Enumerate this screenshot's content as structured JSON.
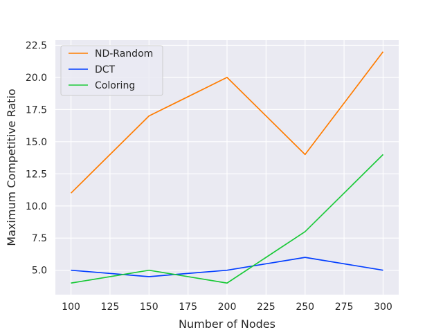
{
  "chart_data": {
    "type": "line",
    "title": "",
    "xlabel": "Number of Nodes",
    "ylabel": "Maximum Competitive Ratio",
    "x": [
      100,
      150,
      200,
      250,
      300
    ],
    "xlim": [
      90,
      310
    ],
    "ylim": [
      3.1,
      22.9
    ],
    "xticks": [
      100,
      125,
      150,
      175,
      200,
      225,
      250,
      275,
      300
    ],
    "xtick_labels": [
      "100",
      "125",
      "150",
      "175",
      "200",
      "225",
      "250",
      "275",
      "300"
    ],
    "yticks": [
      5.0,
      7.5,
      10.0,
      12.5,
      15.0,
      17.5,
      20.0,
      22.5
    ],
    "ytick_labels": [
      "5.0",
      "7.5",
      "10.0",
      "12.5",
      "15.0",
      "17.5",
      "20.0",
      "22.5"
    ],
    "grid": true,
    "legend_position": "top-left",
    "series": [
      {
        "name": "ND-Random",
        "color": "#ff7c00",
        "values": [
          11,
          17,
          20,
          14,
          22
        ]
      },
      {
        "name": "DCT",
        "color": "#023eff",
        "values": [
          5,
          4.5,
          5,
          6,
          5
        ]
      },
      {
        "name": "Coloring",
        "color": "#1ac938",
        "values": [
          4,
          5,
          4,
          8,
          14
        ]
      }
    ],
    "background_color": "#eaeaf2",
    "grid_color": "#ffffff"
  }
}
